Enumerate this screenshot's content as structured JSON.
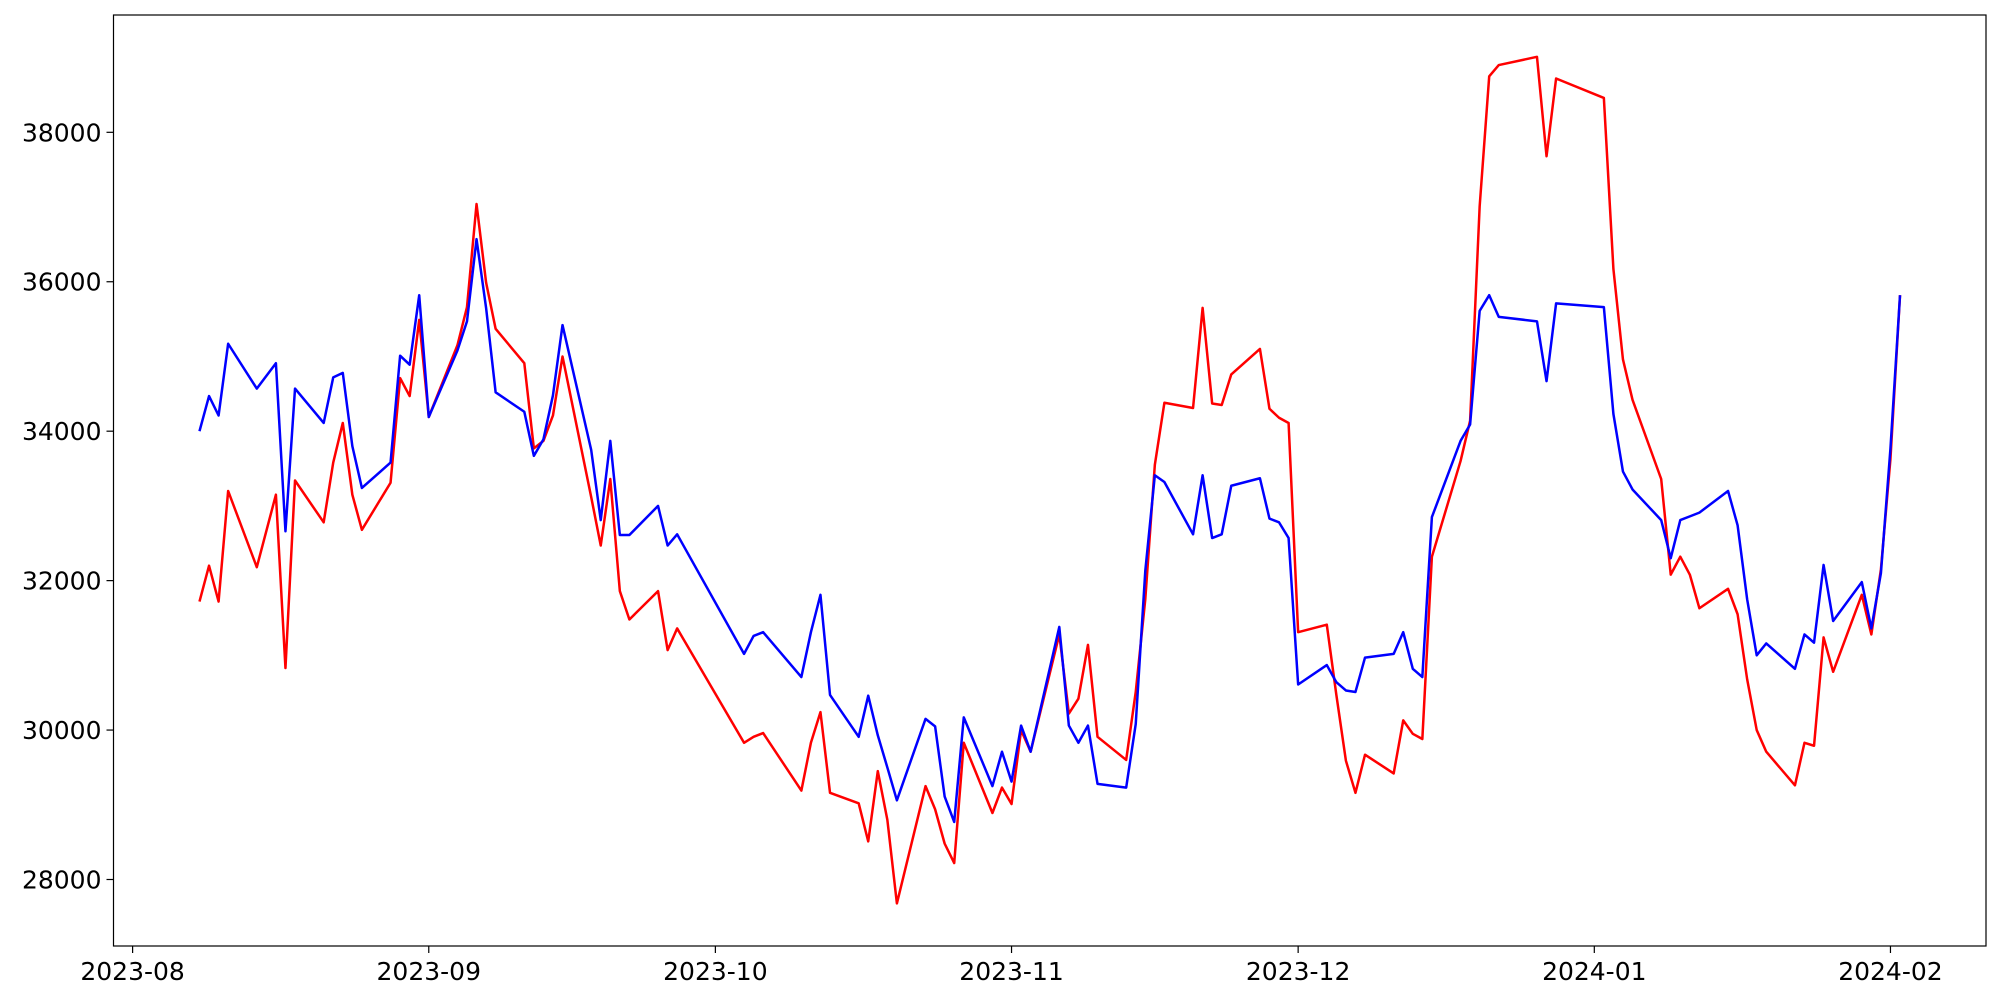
{
  "chart_data": {
    "type": "line",
    "x": [
      "2023-08-08",
      "2023-08-09",
      "2023-08-10",
      "2023-08-11",
      "2023-08-14",
      "2023-08-16",
      "2023-08-17",
      "2023-08-18",
      "2023-08-21",
      "2023-08-22",
      "2023-08-23",
      "2023-08-24",
      "2023-08-25",
      "2023-08-28",
      "2023-08-29",
      "2023-08-30",
      "2023-08-31",
      "2023-09-01",
      "2023-09-04",
      "2023-09-05",
      "2023-09-06",
      "2023-09-07",
      "2023-09-08",
      "2023-09-11",
      "2023-09-12",
      "2023-09-13",
      "2023-09-14",
      "2023-09-15",
      "2023-09-18",
      "2023-09-19",
      "2023-09-20",
      "2023-09-21",
      "2023-09-22",
      "2023-09-25",
      "2023-09-26",
      "2023-09-27",
      "2023-10-04",
      "2023-10-05",
      "2023-10-06",
      "2023-10-10",
      "2023-10-11",
      "2023-10-12",
      "2023-10-13",
      "2023-10-16",
      "2023-10-17",
      "2023-10-18",
      "2023-10-19",
      "2023-10-20",
      "2023-10-23",
      "2023-10-24",
      "2023-10-25",
      "2023-10-26",
      "2023-10-27",
      "2023-10-30",
      "2023-10-31",
      "2023-11-01",
      "2023-11-02",
      "2023-11-03",
      "2023-11-06",
      "2023-11-07",
      "2023-11-08",
      "2023-11-09",
      "2023-11-10",
      "2023-11-13",
      "2023-11-14",
      "2023-11-15",
      "2023-11-16",
      "2023-11-17",
      "2023-11-20",
      "2023-11-21",
      "2023-11-22",
      "2023-11-23",
      "2023-11-24",
      "2023-11-27",
      "2023-11-28",
      "2023-11-29",
      "2023-11-30",
      "2023-12-01",
      "2023-12-04",
      "2023-12-05",
      "2023-12-06",
      "2023-12-07",
      "2023-12-08",
      "2023-12-11",
      "2023-12-12",
      "2023-12-13",
      "2023-12-14",
      "2023-12-15",
      "2023-12-18",
      "2023-12-19",
      "2023-12-20",
      "2023-12-21",
      "2023-12-22",
      "2023-12-26",
      "2023-12-27",
      "2023-12-28",
      "2024-01-02",
      "2024-01-03",
      "2024-01-04",
      "2024-01-05",
      "2024-01-08",
      "2024-01-09",
      "2024-01-10",
      "2024-01-11",
      "2024-01-12",
      "2024-01-15",
      "2024-01-16",
      "2024-01-17",
      "2024-01-18",
      "2024-01-19",
      "2024-01-22",
      "2024-01-23",
      "2024-01-24",
      "2024-01-25",
      "2024-01-26",
      "2024-01-29",
      "2024-01-30",
      "2024-01-31",
      "2024-02-01",
      "2024-02-02"
    ],
    "series": [
      {
        "color": "red",
        "values": [
          31720,
          32200,
          31720,
          33200,
          32180,
          33150,
          30830,
          33340,
          32780,
          33580,
          34110,
          33150,
          32680,
          33310,
          34710,
          34470,
          35490,
          34190,
          35150,
          35660,
          37040,
          35990,
          35370,
          34910,
          33770,
          33870,
          34210,
          35000,
          33120,
          32470,
          33360,
          31860,
          31480,
          31860,
          31070,
          31360,
          29830,
          29910,
          29960,
          29190,
          29830,
          30240,
          29160,
          29020,
          28510,
          29450,
          28800,
          27680,
          29250,
          28940,
          28480,
          28220,
          29830,
          28890,
          29230,
          29010,
          30000,
          29710,
          31280,
          30220,
          30420,
          31140,
          29910,
          29600,
          30510,
          31750,
          33550,
          34380,
          34310,
          35650,
          34370,
          34350,
          34760,
          35100,
          34300,
          34180,
          34110,
          31310,
          31410,
          30470,
          29590,
          29160,
          29670,
          29420,
          30130,
          29950,
          29880,
          32320,
          33600,
          34140,
          37010,
          38750,
          38900,
          39010,
          37680,
          38720,
          38460,
          36170,
          34960,
          34420,
          33360,
          32080,
          32320,
          32080,
          31630,
          31890,
          31550,
          30680,
          30000,
          29710,
          29260,
          29830,
          29790,
          31240,
          30780,
          31810,
          31280,
          32150,
          33630,
          35820
        ]
      },
      {
        "color": "blue",
        "values": [
          34000,
          34470,
          34210,
          35170,
          34570,
          34910,
          32660,
          34570,
          34110,
          34720,
          34780,
          33800,
          33240,
          33580,
          35010,
          34890,
          35820,
          34190,
          35080,
          35470,
          36570,
          35650,
          34520,
          34260,
          33670,
          33890,
          34480,
          35420,
          33750,
          32810,
          33870,
          32610,
          32610,
          33000,
          32470,
          32620,
          31020,
          31260,
          31310,
          30710,
          31310,
          31810,
          30470,
          29910,
          30460,
          29930,
          29500,
          29060,
          30150,
          30050,
          29110,
          28770,
          30170,
          29250,
          29710,
          29310,
          30060,
          29710,
          31380,
          30060,
          29830,
          30060,
          29280,
          29230,
          30080,
          32130,
          33410,
          33320,
          32620,
          33410,
          32570,
          32620,
          33270,
          33370,
          32830,
          32780,
          32570,
          30610,
          30870,
          30640,
          30530,
          30510,
          30970,
          31020,
          31310,
          30820,
          30710,
          32850,
          33870,
          34090,
          35610,
          35820,
          35530,
          35470,
          34670,
          35710,
          35660,
          34230,
          33460,
          33220,
          32810,
          32300,
          32810,
          32860,
          32910,
          33200,
          32740,
          31750,
          31000,
          31160,
          30820,
          31280,
          31170,
          32210,
          31460,
          31980,
          31360,
          32100,
          33770,
          35820
        ]
      }
    ],
    "xlim": [
      "2023-07-30",
      "2024-02-11"
    ],
    "xticks": [
      "2023-08",
      "2023-09",
      "2023-10",
      "2023-11",
      "2023-12",
      "2024-01",
      "2024-02"
    ],
    "ylim": [
      27110,
      39570
    ],
    "yticks": [
      28000,
      30000,
      32000,
      34000,
      36000,
      38000
    ],
    "grid": false
  }
}
